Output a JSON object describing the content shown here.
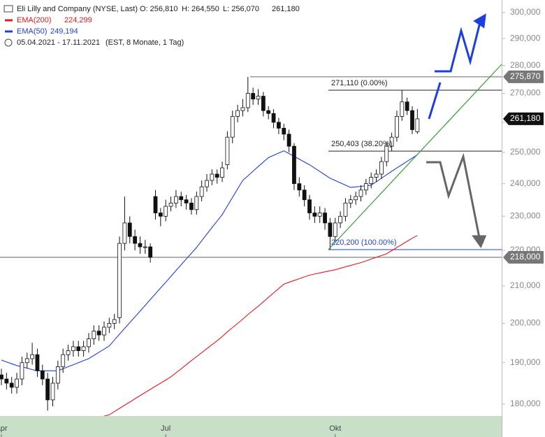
{
  "chart_data": {
    "type": "candlestick",
    "title": "Eli Lilly and Company (NYSE, Last)",
    "ohlc_text": [
      "O: 256,810",
      "H: 264,550",
      "L: 256,070",
      "261,180"
    ],
    "period": "05.04.2021 - 17.11.2021",
    "period_note": "(EST, 8 Monate, 1 Tag)",
    "log_scale": true,
    "ylim": [
      177230,
      304970
    ],
    "yticks": [
      {
        "value": 180000,
        "label": "180,000"
      },
      {
        "value": 190000,
        "label": "190,000"
      },
      {
        "value": 200000,
        "label": "200,000"
      },
      {
        "value": 210000,
        "label": "210,000"
      },
      {
        "value": 220000,
        "label": "220,000"
      },
      {
        "value": 230000,
        "label": "230,000"
      },
      {
        "value": 240000,
        "label": "240,000"
      },
      {
        "value": 250000,
        "label": "250,000"
      },
      {
        "value": 260000,
        "label": "260,000"
      },
      {
        "value": 270000,
        "label": "270,000"
      },
      {
        "value": 280000,
        "label": "280,000"
      },
      {
        "value": 290000,
        "label": "290,000"
      },
      {
        "value": 300000,
        "label": "300,000"
      }
    ],
    "categories": [
      "Apr",
      null,
      null,
      null,
      null,
      null,
      null,
      null,
      null,
      null,
      null,
      null,
      null,
      null,
      null,
      null,
      null,
      null,
      null,
      null,
      null,
      null,
      null,
      null,
      null,
      null,
      null,
      null,
      null,
      null,
      null,
      null,
      "Jul",
      null,
      null,
      null,
      null,
      null,
      null,
      null,
      null,
      null,
      null,
      null,
      null,
      null,
      null,
      null,
      null,
      null,
      null,
      null,
      null,
      null,
      null,
      null,
      null,
      null,
      null,
      null,
      null,
      null,
      null,
      null,
      null,
      "Okt",
      null,
      null,
      null,
      null,
      null,
      null,
      null,
      null,
      null,
      null,
      null,
      null,
      null,
      null,
      null,
      null
    ],
    "candles": {
      "open": [
        187000,
        186000,
        185000,
        184000,
        186000,
        190000,
        191000,
        192000,
        188000,
        186000,
        181000,
        185000,
        189000,
        192000,
        193000,
        194000,
        193000,
        194000,
        196000,
        198000,
        197000,
        199000,
        200000,
        201500,
        222000,
        228000,
        224000,
        222000,
        221000,
        221000,
        236000,
        231000,
        230000,
        233000,
        234000,
        236000,
        235000,
        234000,
        232000,
        236000,
        239000,
        241000,
        243000,
        242000,
        246000,
        255000,
        262000,
        264000,
        265000,
        270000,
        268000,
        269000,
        264000,
        263000,
        260000,
        258000,
        256000,
        252000,
        240000,
        238000,
        235000,
        231000,
        230000,
        231000,
        228000,
        224000,
        228000,
        230000,
        234000,
        235000,
        236000,
        238000,
        240000,
        242000,
        243000,
        247000,
        252000,
        255000,
        262000,
        267000,
        264000,
        256810
      ],
      "high": [
        188500,
        187500,
        186500,
        187500,
        191500,
        192500,
        195000,
        193500,
        189500,
        187500,
        186500,
        190500,
        193500,
        194500,
        195500,
        195500,
        195500,
        197500,
        199500,
        199500,
        200500,
        201500,
        202500,
        224000,
        236000,
        230000,
        226000,
        224000,
        223000,
        222000,
        238000,
        232500,
        235000,
        236000,
        238000,
        237500,
        236500,
        235500,
        237500,
        241000,
        243000,
        244500,
        244500,
        247000,
        257000,
        264000,
        266000,
        268000,
        275870,
        272000,
        271500,
        270500,
        265500,
        264500,
        261500,
        259500,
        257500,
        253000,
        242000,
        239500,
        236500,
        233000,
        233000,
        232500,
        229500,
        229500,
        231500,
        235500,
        236500,
        237500,
        239500,
        241500,
        243500,
        244500,
        248500,
        253500,
        256500,
        264000,
        271110,
        268500,
        265500,
        264550
      ],
      "low": [
        184500,
        183500,
        182500,
        182500,
        184500,
        188500,
        189500,
        186500,
        184500,
        178500,
        179500,
        183500,
        187500,
        190500,
        191500,
        191500,
        191500,
        192500,
        194500,
        195500,
        195500,
        197500,
        198500,
        200000,
        220000,
        222000,
        220000,
        219000,
        219000,
        216500,
        229000,
        227000,
        228500,
        231500,
        232500,
        233000,
        232000,
        230500,
        230500,
        234500,
        237500,
        239500,
        240000,
        240500,
        244500,
        253000,
        260000,
        262000,
        263500,
        266000,
        266000,
        262000,
        261000,
        258000,
        256000,
        254000,
        250000,
        238000,
        236000,
        233000,
        229000,
        228000,
        228000,
        226000,
        220200,
        222500,
        226500,
        228500,
        232500,
        233500,
        234500,
        236500,
        238500,
        240500,
        241500,
        245500,
        250500,
        253500,
        260500,
        262500,
        256000,
        256070
      ],
      "close": [
        186000,
        185000,
        184000,
        186000,
        190000,
        191000,
        192000,
        188000,
        186000,
        181000,
        185000,
        189000,
        192000,
        193000,
        194000,
        193000,
        194000,
        196000,
        198000,
        197000,
        199000,
        200000,
        201000,
        222000,
        228000,
        224000,
        222000,
        221000,
        221000,
        218000,
        231000,
        230000,
        233000,
        234000,
        236000,
        235000,
        234000,
        232000,
        236000,
        239000,
        241000,
        243000,
        242000,
        245000,
        255000,
        262000,
        264000,
        265000,
        270000,
        268000,
        269000,
        264000,
        263000,
        260000,
        258000,
        256000,
        252000,
        240000,
        238000,
        235000,
        231000,
        230000,
        231000,
        228000,
        224000,
        228000,
        230000,
        234000,
        235000,
        236000,
        238000,
        240000,
        242000,
        243000,
        247000,
        252000,
        255000,
        262000,
        267000,
        264000,
        257500,
        261180
      ]
    },
    "series": [
      {
        "name": "EMA(200)",
        "color": "#e31a1c",
        "value_label": "224,299",
        "values": [
          null,
          null,
          null,
          null,
          null,
          null,
          null,
          null,
          null,
          174000,
          174300,
          174600,
          174900,
          175200,
          175500,
          175700,
          176000,
          176300,
          176600,
          176900,
          177200,
          177500,
          178250,
          179000,
          179750,
          180500,
          181250,
          182000,
          182750,
          183500,
          184250,
          185000,
          185750,
          186500,
          187500,
          188500,
          189500,
          190500,
          191500,
          192500,
          193500,
          194500,
          195500,
          196600,
          197800,
          198900,
          200000,
          201100,
          202300,
          203400,
          204500,
          205700,
          206900,
          208100,
          209300,
          210500,
          211000,
          211500,
          212000,
          212500,
          213000,
          213300,
          213600,
          213900,
          214200,
          214500,
          214900,
          215300,
          215700,
          216100,
          216500,
          217000,
          217500,
          218000,
          218500,
          219000,
          219900,
          220800,
          221700,
          222600,
          223500,
          224299
        ]
      },
      {
        "name": "EMA(50)",
        "color": "#2040d8",
        "value_label": "249,194",
        "values": [
          190650,
          190200,
          189750,
          189300,
          189000,
          188650,
          188300,
          188000,
          188000,
          188000,
          188000,
          188000,
          188500,
          189000,
          189500,
          190000,
          190500,
          191000,
          191800,
          192600,
          193400,
          194200,
          195700,
          197200,
          198700,
          200200,
          201700,
          203200,
          204760,
          206320,
          207880,
          209440,
          211000,
          212630,
          214270,
          215900,
          217530,
          219170,
          220800,
          222740,
          224680,
          226620,
          228560,
          230500,
          233130,
          235750,
          238380,
          241000,
          242460,
          243920,
          245380,
          246840,
          248300,
          249030,
          249770,
          250500,
          249600,
          248700,
          247800,
          246900,
          246000,
          244930,
          243850,
          242780,
          241700,
          240980,
          240250,
          239530,
          238800,
          238980,
          239150,
          239330,
          239500,
          240600,
          241700,
          242800,
          243900,
          244960,
          246020,
          247080,
          248140,
          249194
        ]
      }
    ],
    "fibonacci": [
      {
        "value": 271110,
        "label": "271,110 (0.00%)"
      },
      {
        "value": 250403,
        "label": "250,403 (38.20%)"
      },
      {
        "value": 220200,
        "label": "220,200 (100.00%)"
      }
    ],
    "price_labels": [
      {
        "value": 275870,
        "label": "275,870"
      },
      {
        "value": 261180,
        "label": "261,180"
      },
      {
        "value": 218000,
        "label": "218,000"
      }
    ]
  }
}
